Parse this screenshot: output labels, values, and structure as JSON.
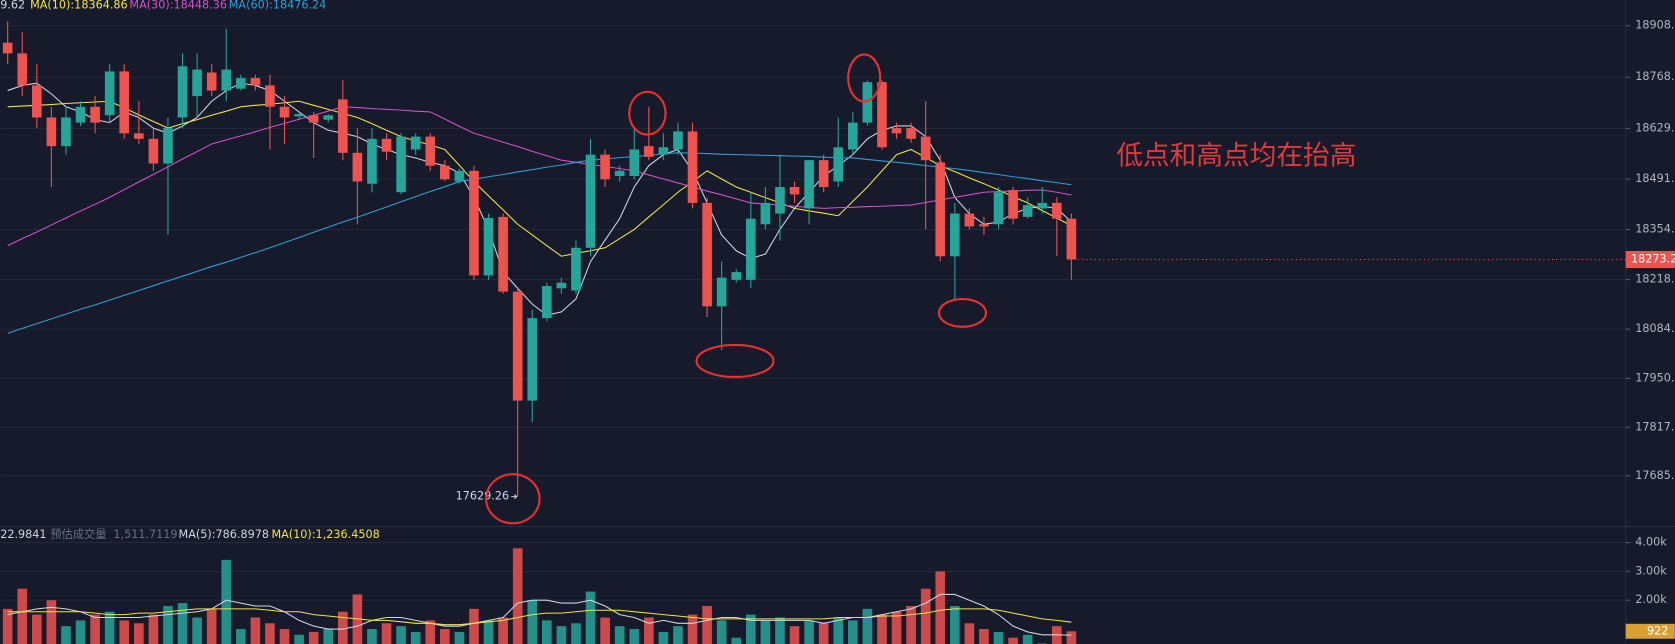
{
  "chart_data": [
    {
      "type": "candlestick",
      "annotation": "低点和高点均在抬高",
      "up_color": "#26a69a",
      "down_color": "#ef5350",
      "ylim": [
        17548,
        18978
      ],
      "yticks": [
        18908.1,
        18768.2,
        18629.3,
        18491.5,
        18354.7,
        18218.8,
        {
          "value": 18084,
          "label": "18084.0"
        },
        17950.2,
        17817.4,
        17685.6
      ],
      "grid": true,
      "open": [
        18862,
        18833,
        18746,
        18659,
        18581,
        18645,
        18688,
        18665,
        18784,
        18616,
        18601,
        18534,
        18659,
        18717,
        18781,
        18732,
        18737,
        18766,
        18746,
        18688,
        18662,
        18665,
        18653,
        18708,
        18563,
        18479,
        18601,
        18456,
        18572,
        18607,
        18528,
        18485,
        18514,
        18230,
        18389,
        18186,
        17890,
        18114,
        18195,
        18189,
        18305,
        18558,
        18500,
        18500,
        18581,
        18558,
        18572,
        18621,
        18427,
        18146,
        18218,
        18218,
        18369,
        18398,
        18470,
        18412,
        18543,
        18485,
        18572,
        18645,
        18755,
        18630,
        18630,
        18607,
        18537,
        18282,
        18398,
        18369,
        18369,
        18462,
        18389,
        18412,
        18427,
        18384
      ],
      "high": [
        18920,
        18891,
        18804,
        18688,
        18688,
        18703,
        18717,
        18804,
        18804,
        18703,
        18630,
        18659,
        18833,
        18833,
        18804,
        18900,
        18775,
        18775,
        18775,
        18717,
        18674,
        18674,
        18668,
        18760,
        18630,
        18630,
        18616,
        18616,
        18616,
        18616,
        18543,
        18520,
        18528,
        18398,
        18398,
        18195,
        18137,
        18210,
        18224,
        18325,
        18601,
        18572,
        18528,
        18630,
        18688,
        18616,
        18645,
        18645,
        18442,
        18268,
        18247,
        18456,
        18470,
        18558,
        18485,
        18543,
        18558,
        18659,
        18674,
        18760,
        18760,
        18645,
        18645,
        18703,
        18558,
        18427,
        18412,
        18389,
        18470,
        18470,
        18442,
        18470,
        18442,
        18398
      ],
      "low": [
        18804,
        18717,
        18630,
        18470,
        18558,
        18636,
        18616,
        18645,
        18601,
        18587,
        18514,
        18340,
        18630,
        18659,
        18717,
        18703,
        18732,
        18732,
        18572,
        18587,
        18653,
        18549,
        18645,
        18543,
        18369,
        18456,
        18543,
        18450,
        18558,
        18514,
        18485,
        18479,
        18218,
        18218,
        18180,
        17629.26,
        17832,
        18105,
        18180,
        18180,
        18282,
        18470,
        18485,
        18491,
        18543,
        18543,
        18558,
        18412,
        18117,
        18027,
        18210,
        18195,
        18355,
        18325,
        18427,
        18369,
        18456,
        18470,
        18558,
        18636,
        18572,
        18601,
        18590,
        18355,
        18268,
        18166,
        18355,
        18340,
        18355,
        18369,
        18384,
        18398,
        18282,
        18218
      ],
      "close": [
        18833,
        18746,
        18659,
        18581,
        18659,
        18688,
        18645,
        18784,
        18616,
        18601,
        18534,
        18630,
        18798,
        18789,
        18732,
        18789,
        18766,
        18746,
        18688,
        18659,
        18668,
        18645,
        18665,
        18563,
        18485,
        18601,
        18566,
        18607,
        18607,
        18528,
        18491,
        18514,
        18230,
        18386,
        18186,
        17890,
        18114,
        18201,
        18210,
        18305,
        18558,
        18491,
        18514,
        18572,
        18552,
        18578,
        18621,
        18427,
        18146,
        18224,
        18239,
        18384,
        18427,
        18470,
        18450,
        18543,
        18470,
        18578,
        18645,
        18755,
        18578,
        18616,
        18601,
        18543,
        18282,
        18398,
        18363,
        18363,
        18456,
        18384,
        18421,
        18427,
        18384,
        18273.2
      ],
      "series": [
        {
          "label": "9.62",
          "color": "#d1d4dc",
          "values": [
            18732,
            18746,
            18752,
            18723,
            18688,
            18674,
            18653,
            18645,
            18674,
            18659,
            18630,
            18616,
            18636,
            18659,
            18703,
            18732,
            18752,
            18746,
            18732,
            18703,
            18674,
            18645,
            18624,
            18616,
            18607,
            18587,
            18572,
            18558,
            18549,
            18537,
            18528,
            18508,
            18442,
            18355,
            18239,
            18195,
            18152,
            18122,
            18131,
            18166,
            18268,
            18326,
            18384,
            18470,
            18528,
            18558,
            18572,
            18514,
            18427,
            18340,
            18297,
            18276,
            18288,
            18355,
            18412,
            18456,
            18500,
            18528,
            18558,
            18601,
            18624,
            18636,
            18636,
            18607,
            18543,
            18442,
            18398,
            18369,
            18375,
            18398,
            18412,
            18418,
            18412,
            18375
          ]
        },
        {
          "label": "MA(10):18364.86",
          "color": "#f2e341",
          "values": [
            18688,
            18690,
            18692,
            18694,
            18697,
            18699,
            18701,
            18703,
            18685,
            18666,
            18648,
            18630,
            18642,
            18653,
            18665,
            18676,
            18688,
            18692,
            18695,
            18699,
            18703,
            18692,
            18681,
            18670,
            18659,
            18642,
            18624,
            18607,
            18595,
            18584,
            18572,
            18529,
            18485,
            18446,
            18408,
            18369,
            18340,
            18311,
            18282,
            18290,
            18297,
            18305,
            18330,
            18355,
            18389,
            18422,
            18456,
            18485,
            18514,
            18492,
            18470,
            18456,
            18441,
            18427,
            18412,
            18405,
            18399,
            18392,
            18431,
            18470,
            18514,
            18558,
            18572,
            18550,
            18528,
            18512,
            18495,
            18479,
            18462,
            18444,
            18427,
            18406,
            18386,
            18364.86
          ]
        },
        {
          "label": "MA(30):18448.36",
          "color": "#d44fc9",
          "values": [
            18311,
            18330,
            18348,
            18367,
            18386,
            18405,
            18423,
            18442,
            18463,
            18484,
            18504,
            18525,
            18546,
            18566,
            18587,
            18598,
            18609,
            18620,
            18632,
            18643,
            18654,
            18665,
            18676,
            18688,
            18686,
            18683,
            18681,
            18679,
            18676,
            18674,
            18655,
            18635,
            18616,
            18604,
            18592,
            18580,
            18567,
            18555,
            18543,
            18537,
            18531,
            18526,
            18520,
            18514,
            18503,
            18492,
            18481,
            18470,
            18459,
            18449,
            18438,
            18427,
            18424,
            18421,
            18418,
            18415,
            18412,
            18414,
            18415,
            18417,
            18418,
            18420,
            18421,
            18428,
            18435,
            18442,
            18449,
            18456,
            18458,
            18459,
            18461,
            18462,
            18456,
            18448.36
          ]
        },
        {
          "label": "MA(60):18476.24",
          "color": "#2f9ed6",
          "values": [
            18073,
            18086,
            18099,
            18112,
            18125,
            18138,
            18150,
            18163,
            18176,
            18189,
            18202,
            18215,
            18228,
            18241,
            18254,
            18266,
            18279,
            18292,
            18305,
            18319,
            18333,
            18347,
            18361,
            18375,
            18388,
            18402,
            18416,
            18430,
            18444,
            18458,
            18471,
            18485,
            18491,
            18498,
            18504,
            18511,
            18517,
            18524,
            18530,
            18537,
            18543,
            18546,
            18550,
            18553,
            18556,
            18560,
            18563,
            18562,
            18561,
            18559,
            18558,
            18557,
            18556,
            18555,
            18554,
            18553,
            18551,
            18550,
            18549,
            18545,
            18541,
            18537,
            18533,
            18528,
            18524,
            18520,
            18515,
            18509,
            18504,
            18498,
            18493,
            18487,
            18482,
            18476.24
          ]
        }
      ]
    },
    {
      "type": "bar",
      "up_color": "#26a69a",
      "down_color": "#ef5350",
      "volume_label": "22.9841",
      "estimate_label": "预估成交量",
      "estimate_value": "1,511.7119",
      "ylim": [
        481,
        4556
      ],
      "yticks": [
        {
          "value": 4000,
          "label": "4.00k"
        },
        {
          "value": 3000,
          "label": "3.00k"
        },
        {
          "value": 2000,
          "label": "2.00k"
        }
      ],
      "grid": true,
      "values": [
        1700,
        2400,
        1500,
        2000,
        1100,
        1300,
        1500,
        1600,
        1300,
        1200,
        1500,
        1800,
        1900,
        1400,
        1700,
        3400,
        1000,
        1400,
        1200,
        1000,
        800,
        900,
        1000,
        1600,
        2200,
        1000,
        1200,
        1100,
        900,
        1300,
        1000,
        900,
        1700,
        1300,
        1400,
        3800,
        2000,
        1300,
        1100,
        1200,
        2300,
        1400,
        1100,
        1000,
        1400,
        900,
        1100,
        1500,
        1800,
        1300,
        700,
        1500,
        1300,
        1400,
        1100,
        1300,
        1200,
        1400,
        1300,
        1700,
        1500,
        1600,
        1800,
        2400,
        3000,
        1800,
        1200,
        1000,
        900,
        700,
        800,
        500,
        1100,
        922
      ],
      "series": [
        {
          "label": "MA(5):786.8978",
          "color": "#d1d4dc",
          "values": [
            1500,
            1600,
            1700,
            1750,
            1700,
            1600,
            1400,
            1400,
            1400,
            1400,
            1450,
            1500,
            1550,
            1600,
            1700,
            2000,
            1900,
            1800,
            1800,
            1600,
            1300,
            1100,
            1000,
            1000,
            1100,
            1300,
            1400,
            1400,
            1300,
            1200,
            1100,
            1100,
            1200,
            1300,
            1400,
            1900,
            2000,
            2000,
            1900,
            1900,
            2000,
            1800,
            1500,
            1400,
            1200,
            1300,
            1200,
            1200,
            1300,
            1400,
            1400,
            1300,
            1300,
            1300,
            1300,
            1300,
            1200,
            1300,
            1400,
            1400,
            1500,
            1600,
            1700,
            1900,
            2200,
            2200,
            2000,
            1800,
            1500,
            1100,
            900,
            800,
            800,
            786.8978
          ]
        },
        {
          "label": "MA(10):1,236.4508",
          "color": "#f2e341",
          "values": [
            1600,
            1600,
            1600,
            1600,
            1600,
            1600,
            1550,
            1500,
            1500,
            1550,
            1550,
            1600,
            1650,
            1700,
            1700,
            1700,
            1700,
            1700,
            1650,
            1600,
            1600,
            1500,
            1450,
            1400,
            1350,
            1300,
            1300,
            1250,
            1200,
            1200,
            1150,
            1150,
            1200,
            1250,
            1300,
            1400,
            1500,
            1550,
            1550,
            1600,
            1650,
            1650,
            1650,
            1600,
            1550,
            1500,
            1450,
            1400,
            1350,
            1350,
            1350,
            1350,
            1350,
            1350,
            1350,
            1350,
            1350,
            1400,
            1400,
            1400,
            1450,
            1450,
            1500,
            1550,
            1650,
            1700,
            1700,
            1700,
            1650,
            1550,
            1450,
            1350,
            1300,
            1236.4508
          ]
        }
      ]
    }
  ]
}
